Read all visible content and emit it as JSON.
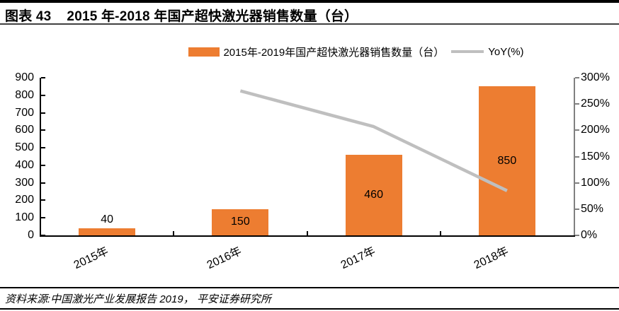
{
  "page": {
    "figure_label": "图表 43",
    "title": "2015 年-2018 年国产超快激光器销售数量（台）"
  },
  "legend": {
    "bars_label": "2015年-2019年国产超快激光器销售数量（台）",
    "line_label": "YoY(%)"
  },
  "colors": {
    "bar": "#ED7D31",
    "line": "#BFBFBF",
    "axis": "#000000",
    "right_axis": "#808080",
    "rule": "#000000"
  },
  "chart_data": {
    "type": "bar",
    "categories": [
      "2015年",
      "2016年",
      "2017年",
      "2018年"
    ],
    "series": [
      {
        "name": "2015年-2019年国产超快激光器销售数量（台）",
        "type": "bar",
        "axis": "left",
        "values": [
          40,
          150,
          460,
          850
        ]
      },
      {
        "name": "YoY(%)",
        "type": "line",
        "axis": "right",
        "values": [
          null,
          275,
          207,
          85
        ]
      }
    ],
    "left_axis": {
      "min": 0,
      "max": 900,
      "step": 100,
      "suffix": ""
    },
    "right_axis": {
      "min": 0,
      "max": 300,
      "step": 50,
      "suffix": "%"
    },
    "grid": false,
    "legend_position": "top",
    "bar_label_placement": "inside-center, outside-top when bar too short",
    "x_label_rotation_deg": -25
  },
  "footer": {
    "source": "资料来源:中国激光产业发展报告 2019， 平安证券研究所"
  }
}
